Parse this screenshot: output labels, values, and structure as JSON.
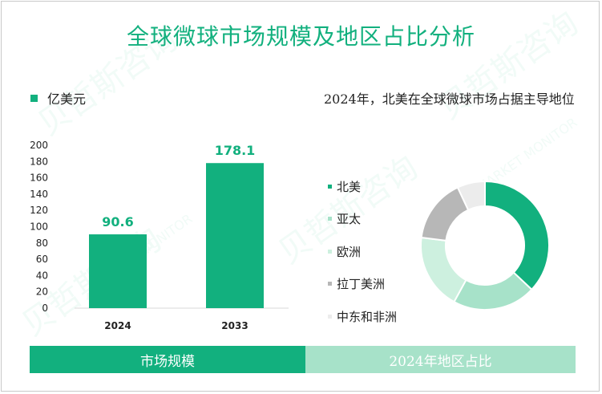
{
  "title": "全球微球市场规模及地区占比分析",
  "unit_label": "亿美元",
  "right_title": "2024年，北美在全球微球市场占据主导地位",
  "watermark": {
    "brand": "贝哲斯咨询",
    "brand_en": "MARKET MONITOR"
  },
  "bottom": {
    "left_label": "市场规模",
    "right_label": "2024年地区占比"
  },
  "colors": {
    "primary": "#12b07e",
    "light": "#a7e2c9",
    "pale": "#cdf0df",
    "gray": "#b7b7b7",
    "faint": "#ececec"
  },
  "chart_data": [
    {
      "type": "bar",
      "categories": [
        "2024",
        "2033"
      ],
      "values": [
        90.6,
        178.1
      ],
      "value_labels": [
        "90.6",
        "178.1"
      ],
      "ylim": [
        0,
        200
      ],
      "yticks": [
        0,
        20,
        40,
        60,
        80,
        100,
        120,
        140,
        160,
        180,
        200
      ],
      "legend": "亿美元",
      "grid": false
    },
    {
      "type": "pie",
      "donut": true,
      "labels": [
        "北美",
        "亚太",
        "欧洲",
        "拉丁美洲",
        "中东和非洲"
      ],
      "values": [
        37,
        21,
        19,
        16,
        7
      ],
      "colors": [
        "#12b07e",
        "#a7e2c9",
        "#cdf0df",
        "#b7b7b7",
        "#ececec"
      ],
      "legend_position": "left"
    }
  ]
}
